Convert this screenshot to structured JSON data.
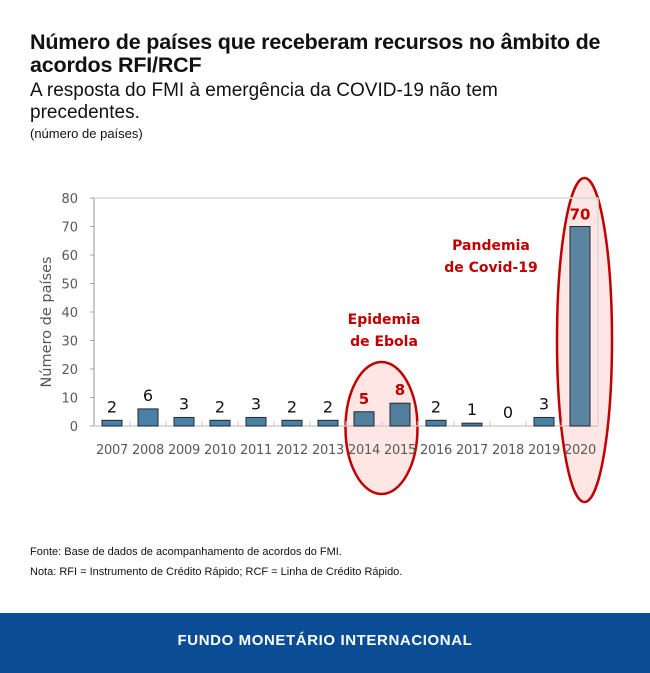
{
  "header": {
    "title": "Número de países que receberam recursos no âmbito de acordos RFI/RCF",
    "subtitle": "A resposta do FMI à emergência da COVID-19 não tem precedentes.",
    "units": "(número de países)"
  },
  "chart_data": {
    "type": "bar",
    "title": "Número de países que receberam recursos no âmbito de acordos RFI/RCF",
    "xlabel": "",
    "ylabel": "Número de países",
    "ylim": [
      0,
      80
    ],
    "yticks": [
      0,
      10,
      20,
      30,
      40,
      50,
      60,
      70,
      80
    ],
    "categories": [
      "2007",
      "2008",
      "2009",
      "2010",
      "2011",
      "2012",
      "2013",
      "2014",
      "2015",
      "2016",
      "2017",
      "2018",
      "2019",
      "2020"
    ],
    "values": [
      2,
      6,
      3,
      2,
      3,
      2,
      2,
      5,
      8,
      2,
      1,
      0,
      3,
      70
    ],
    "highlighted": [
      "2014",
      "2015",
      "2020"
    ],
    "annotations": [
      {
        "text_line1": "Epidemia",
        "text_line2": "de Ebola",
        "categories": [
          "2014",
          "2015"
        ]
      },
      {
        "text_line1": "Pandemia",
        "text_line2": "de Covid-19",
        "categories": [
          "2020"
        ]
      }
    ],
    "grid": false,
    "colors": {
      "bar": "#4a80a6",
      "bar_2020": "#5a84a0",
      "highlight": "#c00000",
      "ellipse_fill": "#fde6e3"
    }
  },
  "footer": {
    "source": "Fonte: Base de dados de acompanhamento de acordos do FMI.",
    "note": "Nota: RFI = Instrumento de Crédito Rápido; RCF = Linha de Crédito Rápido.",
    "brand": "FUNDO MONETÁRIO INTERNACIONAL"
  }
}
